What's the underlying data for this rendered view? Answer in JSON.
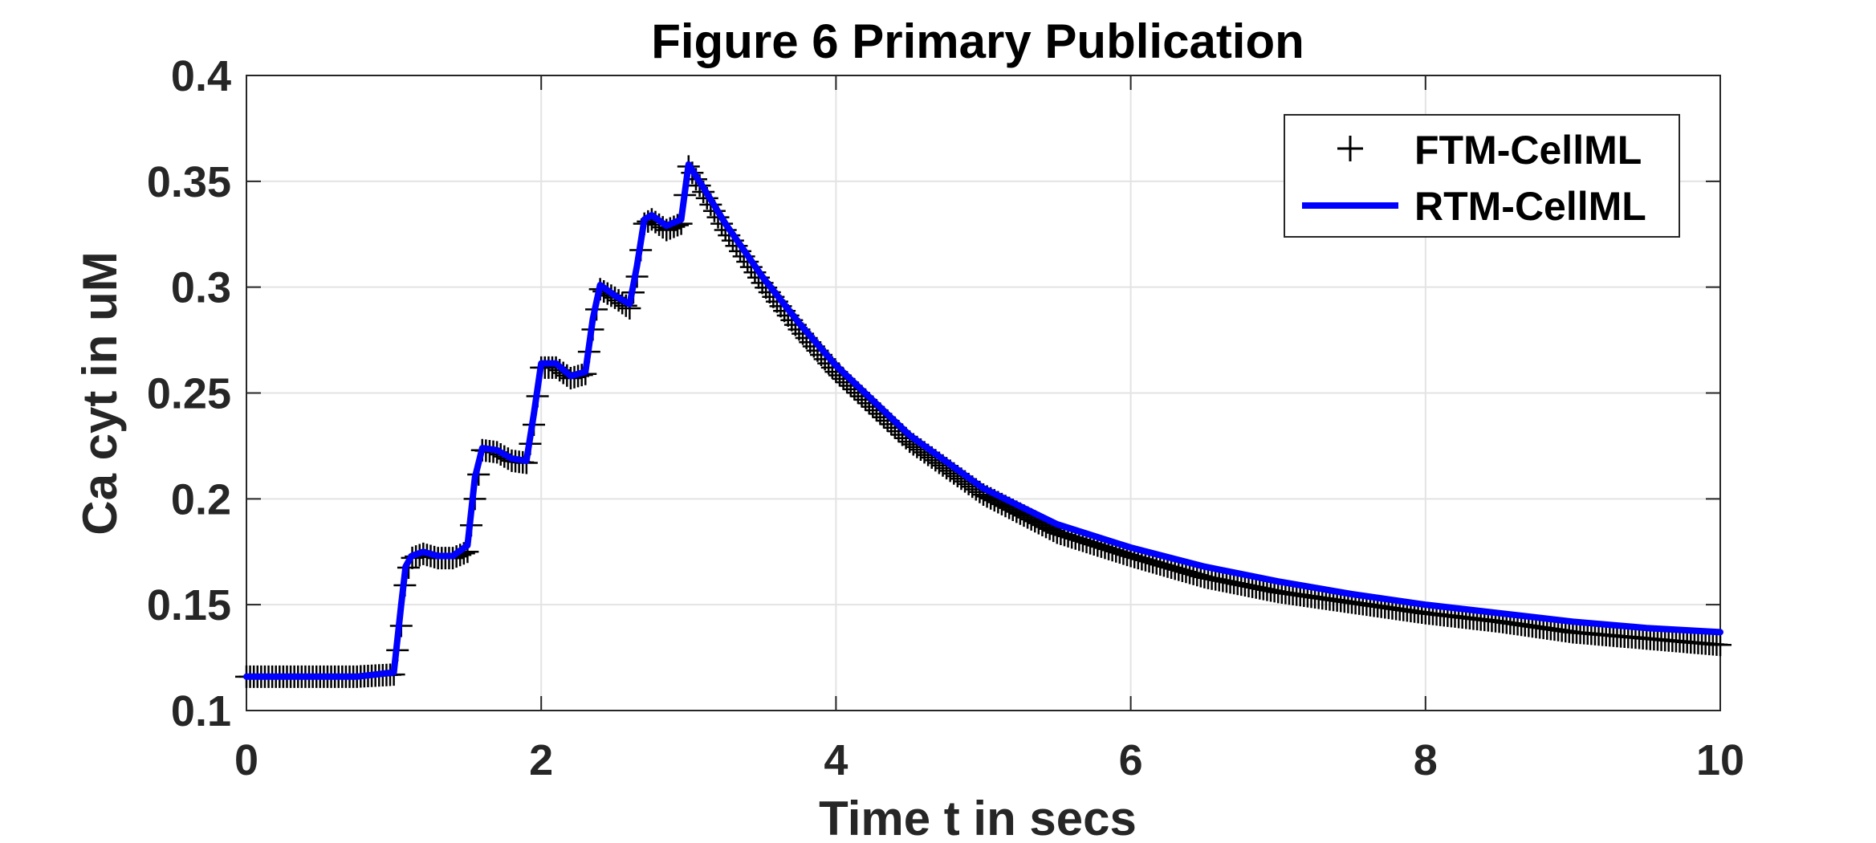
{
  "chart_data": {
    "type": "line",
    "title": "Figure 6 Primary Publication",
    "xlabel": "Time t in secs",
    "ylabel": "Ca cyt in uM",
    "xlim": [
      0,
      10
    ],
    "ylim": [
      0.1,
      0.4
    ],
    "xticks": [
      0,
      2,
      4,
      6,
      8,
      10
    ],
    "xtick_labels": [
      "0",
      "2",
      "4",
      "6",
      "8",
      "10"
    ],
    "yticks": [
      0.1,
      0.15,
      0.2,
      0.25,
      0.3,
      0.35,
      0.4
    ],
    "ytick_labels": [
      "0.1",
      "0.15",
      "0.2",
      "0.25",
      "0.3",
      "0.35",
      "0.4"
    ],
    "grid": true,
    "legend_position": "top-right",
    "series": [
      {
        "name": "FTM-CellML",
        "style": "markers-plus",
        "color": "#000000",
        "x": [
          0,
          0.25,
          0.5,
          0.75,
          1.0,
          1.05,
          1.08,
          1.12,
          1.2,
          1.3,
          1.4,
          1.5,
          1.55,
          1.6,
          1.7,
          1.8,
          1.9,
          1.95,
          2.0,
          2.1,
          2.2,
          2.3,
          2.35,
          2.4,
          2.5,
          2.6,
          2.65,
          2.7,
          2.75,
          2.85,
          2.95,
          3.0,
          3.1,
          3.25,
          3.5,
          3.75,
          4.0,
          4.5,
          5.0,
          5.5,
          6.0,
          6.5,
          7.0,
          7.5,
          8.0,
          8.5,
          9.0,
          9.5,
          10.0
        ],
        "y": [
          0.116,
          0.116,
          0.116,
          0.116,
          0.117,
          0.14,
          0.163,
          0.172,
          0.174,
          0.172,
          0.172,
          0.175,
          0.2,
          0.223,
          0.222,
          0.218,
          0.217,
          0.235,
          0.262,
          0.262,
          0.257,
          0.259,
          0.28,
          0.299,
          0.295,
          0.29,
          0.305,
          0.33,
          0.332,
          0.327,
          0.33,
          0.357,
          0.345,
          0.327,
          0.302,
          0.28,
          0.26,
          0.227,
          0.202,
          0.184,
          0.173,
          0.163,
          0.156,
          0.151,
          0.146,
          0.142,
          0.137,
          0.134,
          0.131
        ]
      },
      {
        "name": "RTM-CellML",
        "style": "line",
        "color": "#0000ff",
        "x": [
          0,
          0.25,
          0.5,
          0.75,
          1.0,
          1.05,
          1.08,
          1.12,
          1.2,
          1.3,
          1.4,
          1.5,
          1.55,
          1.6,
          1.7,
          1.8,
          1.9,
          1.95,
          2.0,
          2.1,
          2.2,
          2.3,
          2.35,
          2.4,
          2.5,
          2.6,
          2.65,
          2.7,
          2.75,
          2.85,
          2.95,
          3.0,
          3.1,
          3.25,
          3.5,
          3.75,
          4.0,
          4.5,
          5.0,
          5.5,
          6.0,
          6.5,
          7.0,
          7.5,
          8.0,
          8.5,
          9.0,
          9.5,
          10.0
        ],
        "y": [
          0.116,
          0.116,
          0.116,
          0.116,
          0.118,
          0.15,
          0.168,
          0.173,
          0.175,
          0.173,
          0.173,
          0.178,
          0.21,
          0.224,
          0.223,
          0.219,
          0.218,
          0.24,
          0.264,
          0.264,
          0.258,
          0.26,
          0.285,
          0.301,
          0.296,
          0.292,
          0.31,
          0.332,
          0.334,
          0.329,
          0.332,
          0.358,
          0.347,
          0.33,
          0.305,
          0.283,
          0.263,
          0.23,
          0.205,
          0.188,
          0.177,
          0.168,
          0.161,
          0.155,
          0.15,
          0.146,
          0.142,
          0.139,
          0.137
        ]
      }
    ]
  }
}
